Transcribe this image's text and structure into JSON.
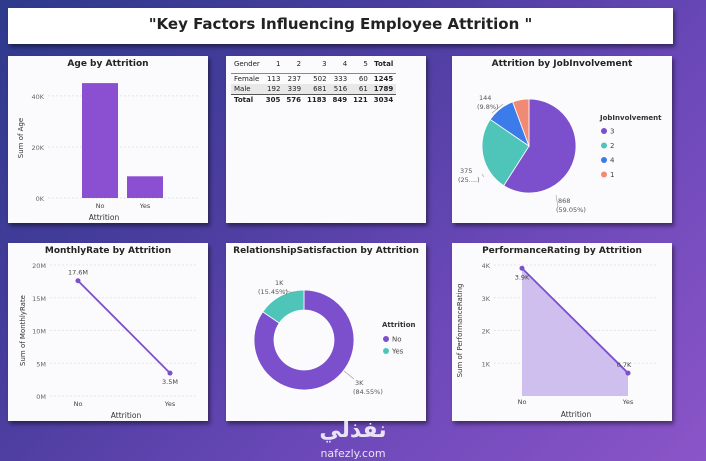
{
  "page_title": "\"Key Factors Influencing Employee Attrition \"",
  "watermark": {
    "arabic": "نفذلي",
    "site": "nafezly.com"
  },
  "matrix": {
    "header": [
      "Gender",
      "1",
      "2",
      "3",
      "4",
      "5",
      "Total"
    ],
    "rows": [
      [
        "Female",
        "113",
        "237",
        "502",
        "333",
        "60",
        "1245"
      ],
      [
        "Male",
        "192",
        "339",
        "681",
        "516",
        "61",
        "1789"
      ]
    ],
    "total": [
      "Total",
      "305",
      "576",
      "1183",
      "849",
      "121",
      "3034"
    ]
  },
  "chart_data": [
    {
      "id": "age",
      "type": "bar",
      "title": "Age by Attrition",
      "xlabel": "Attrition",
      "ylabel": "Sum of Age",
      "categories": [
        "No",
        "Yes"
      ],
      "values": [
        45000,
        8500
      ],
      "ylim": [
        0,
        47000
      ],
      "yticks": [
        0,
        20000,
        40000
      ],
      "ytick_labels": [
        "0K",
        "20K",
        "40K"
      ],
      "color": "#8b4fd1"
    },
    {
      "id": "job",
      "type": "pie",
      "title": "Attrition by JobInvolvement",
      "legend_title": "JobInvolvement",
      "slices": [
        {
          "label": "3",
          "value": 868,
          "pct": "(59.05%)",
          "color": "#7c4fcc"
        },
        {
          "label": "2",
          "value": 375,
          "pct": "(25....)",
          "color": "#4fc4b8"
        },
        {
          "label": "4",
          "value": 144,
          "pct": "(9.8%)",
          "color": "#3c7bea"
        },
        {
          "label": "1",
          "value": 83,
          "pct": "",
          "color": "#f08a74"
        }
      ]
    },
    {
      "id": "monthly",
      "type": "line",
      "title": "MonthlyRate by Attrition",
      "xlabel": "Attrition",
      "ylabel": "Sum of MonthlyRate",
      "categories": [
        "No",
        "Yes"
      ],
      "values": [
        17.6,
        3.5
      ],
      "point_labels": [
        "17.6M",
        "3.5M"
      ],
      "ylim": [
        0,
        20
      ],
      "yticks": [
        0,
        5,
        10,
        15,
        20
      ],
      "ytick_labels": [
        "0M",
        "5M",
        "10M",
        "15M",
        "20M"
      ],
      "color": "#7c4fcc"
    },
    {
      "id": "relsat",
      "type": "pie",
      "title": "RelationshipSatisfaction by Attrition",
      "legend_title": "Attrition",
      "donut": true,
      "slices": [
        {
          "label": "No",
          "value_label": "3K",
          "pct": "(84.55%)",
          "share": 84.55,
          "color": "#7c4fcc"
        },
        {
          "label": "Yes",
          "value_label": "1K",
          "pct": "(15.45%)",
          "share": 15.45,
          "color": "#4fc4b8"
        }
      ]
    },
    {
      "id": "perf",
      "type": "area",
      "title": "PerformanceRating by Attrition",
      "xlabel": "Attrition",
      "ylabel": "Sum of PerformanceRating",
      "categories": [
        "No",
        "Yes"
      ],
      "values": [
        3.9,
        0.7
      ],
      "point_labels": [
        "3.9K",
        "0.7K"
      ],
      "ylim": [
        0,
        4
      ],
      "yticks": [
        1,
        2,
        3,
        4
      ],
      "ytick_labels": [
        "1K",
        "2K",
        "3K",
        "4K"
      ],
      "color": "#7c4fcc"
    }
  ]
}
